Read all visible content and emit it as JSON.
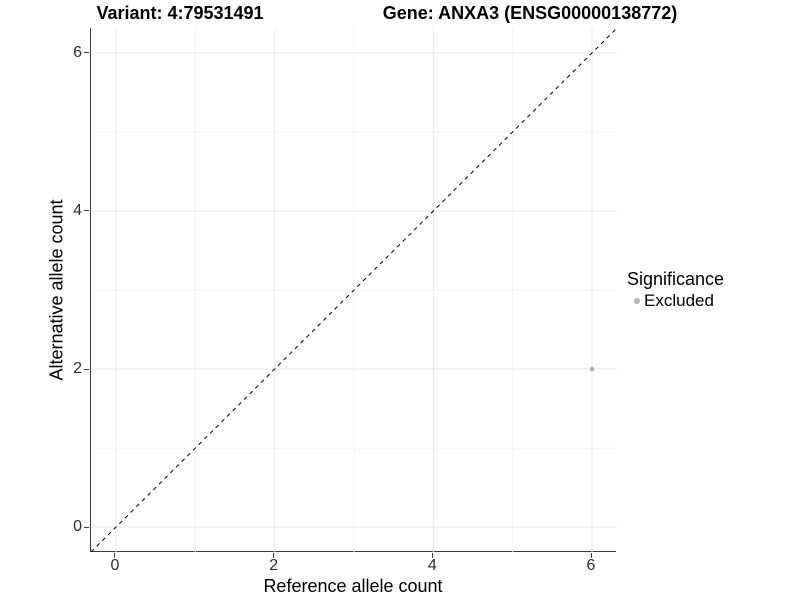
{
  "header": {
    "title_left": "Variant: 4:79531491",
    "title_right": "Gene: ANXA3 (ENSG00000138772)"
  },
  "chart_data": {
    "type": "scatter",
    "title_left": "Variant: 4:79531491",
    "title_right": "Gene: ANXA3 (ENSG00000138772)",
    "xlabel": "Reference allele count",
    "ylabel": "Alternative allele count",
    "xlim": [
      -0.315,
      6.315
    ],
    "ylim": [
      -0.315,
      6.315
    ],
    "x_ticks": [
      0,
      2,
      4,
      6
    ],
    "y_ticks": [
      0,
      2,
      4,
      6
    ],
    "x_minor_ticks": [
      1,
      3,
      5
    ],
    "y_minor_ticks": [
      1,
      3,
      5
    ],
    "grid": true,
    "reference_line": {
      "name": "identity-line",
      "style": "dashed",
      "color": "#000000",
      "x1": -0.315,
      "y1": -0.315,
      "x2": 6.315,
      "y2": 6.315
    },
    "series": [
      {
        "name": "Excluded",
        "color": "#b5b5b5",
        "points": [
          {
            "x": 6,
            "y": 2
          }
        ]
      }
    ],
    "legend": {
      "position": "right",
      "title": "Significance",
      "items": [
        {
          "label": "Excluded",
          "color": "#b5b5b5"
        }
      ]
    }
  },
  "colors": {
    "background": "#ffffff",
    "grid_major": "#e9e9e9",
    "grid_minor": "#f3f3f3",
    "axis_line": "#3c3c3c",
    "tick_label": "#2e2e2e",
    "point": "#b5b5b5",
    "dashed_line": "#000000"
  }
}
